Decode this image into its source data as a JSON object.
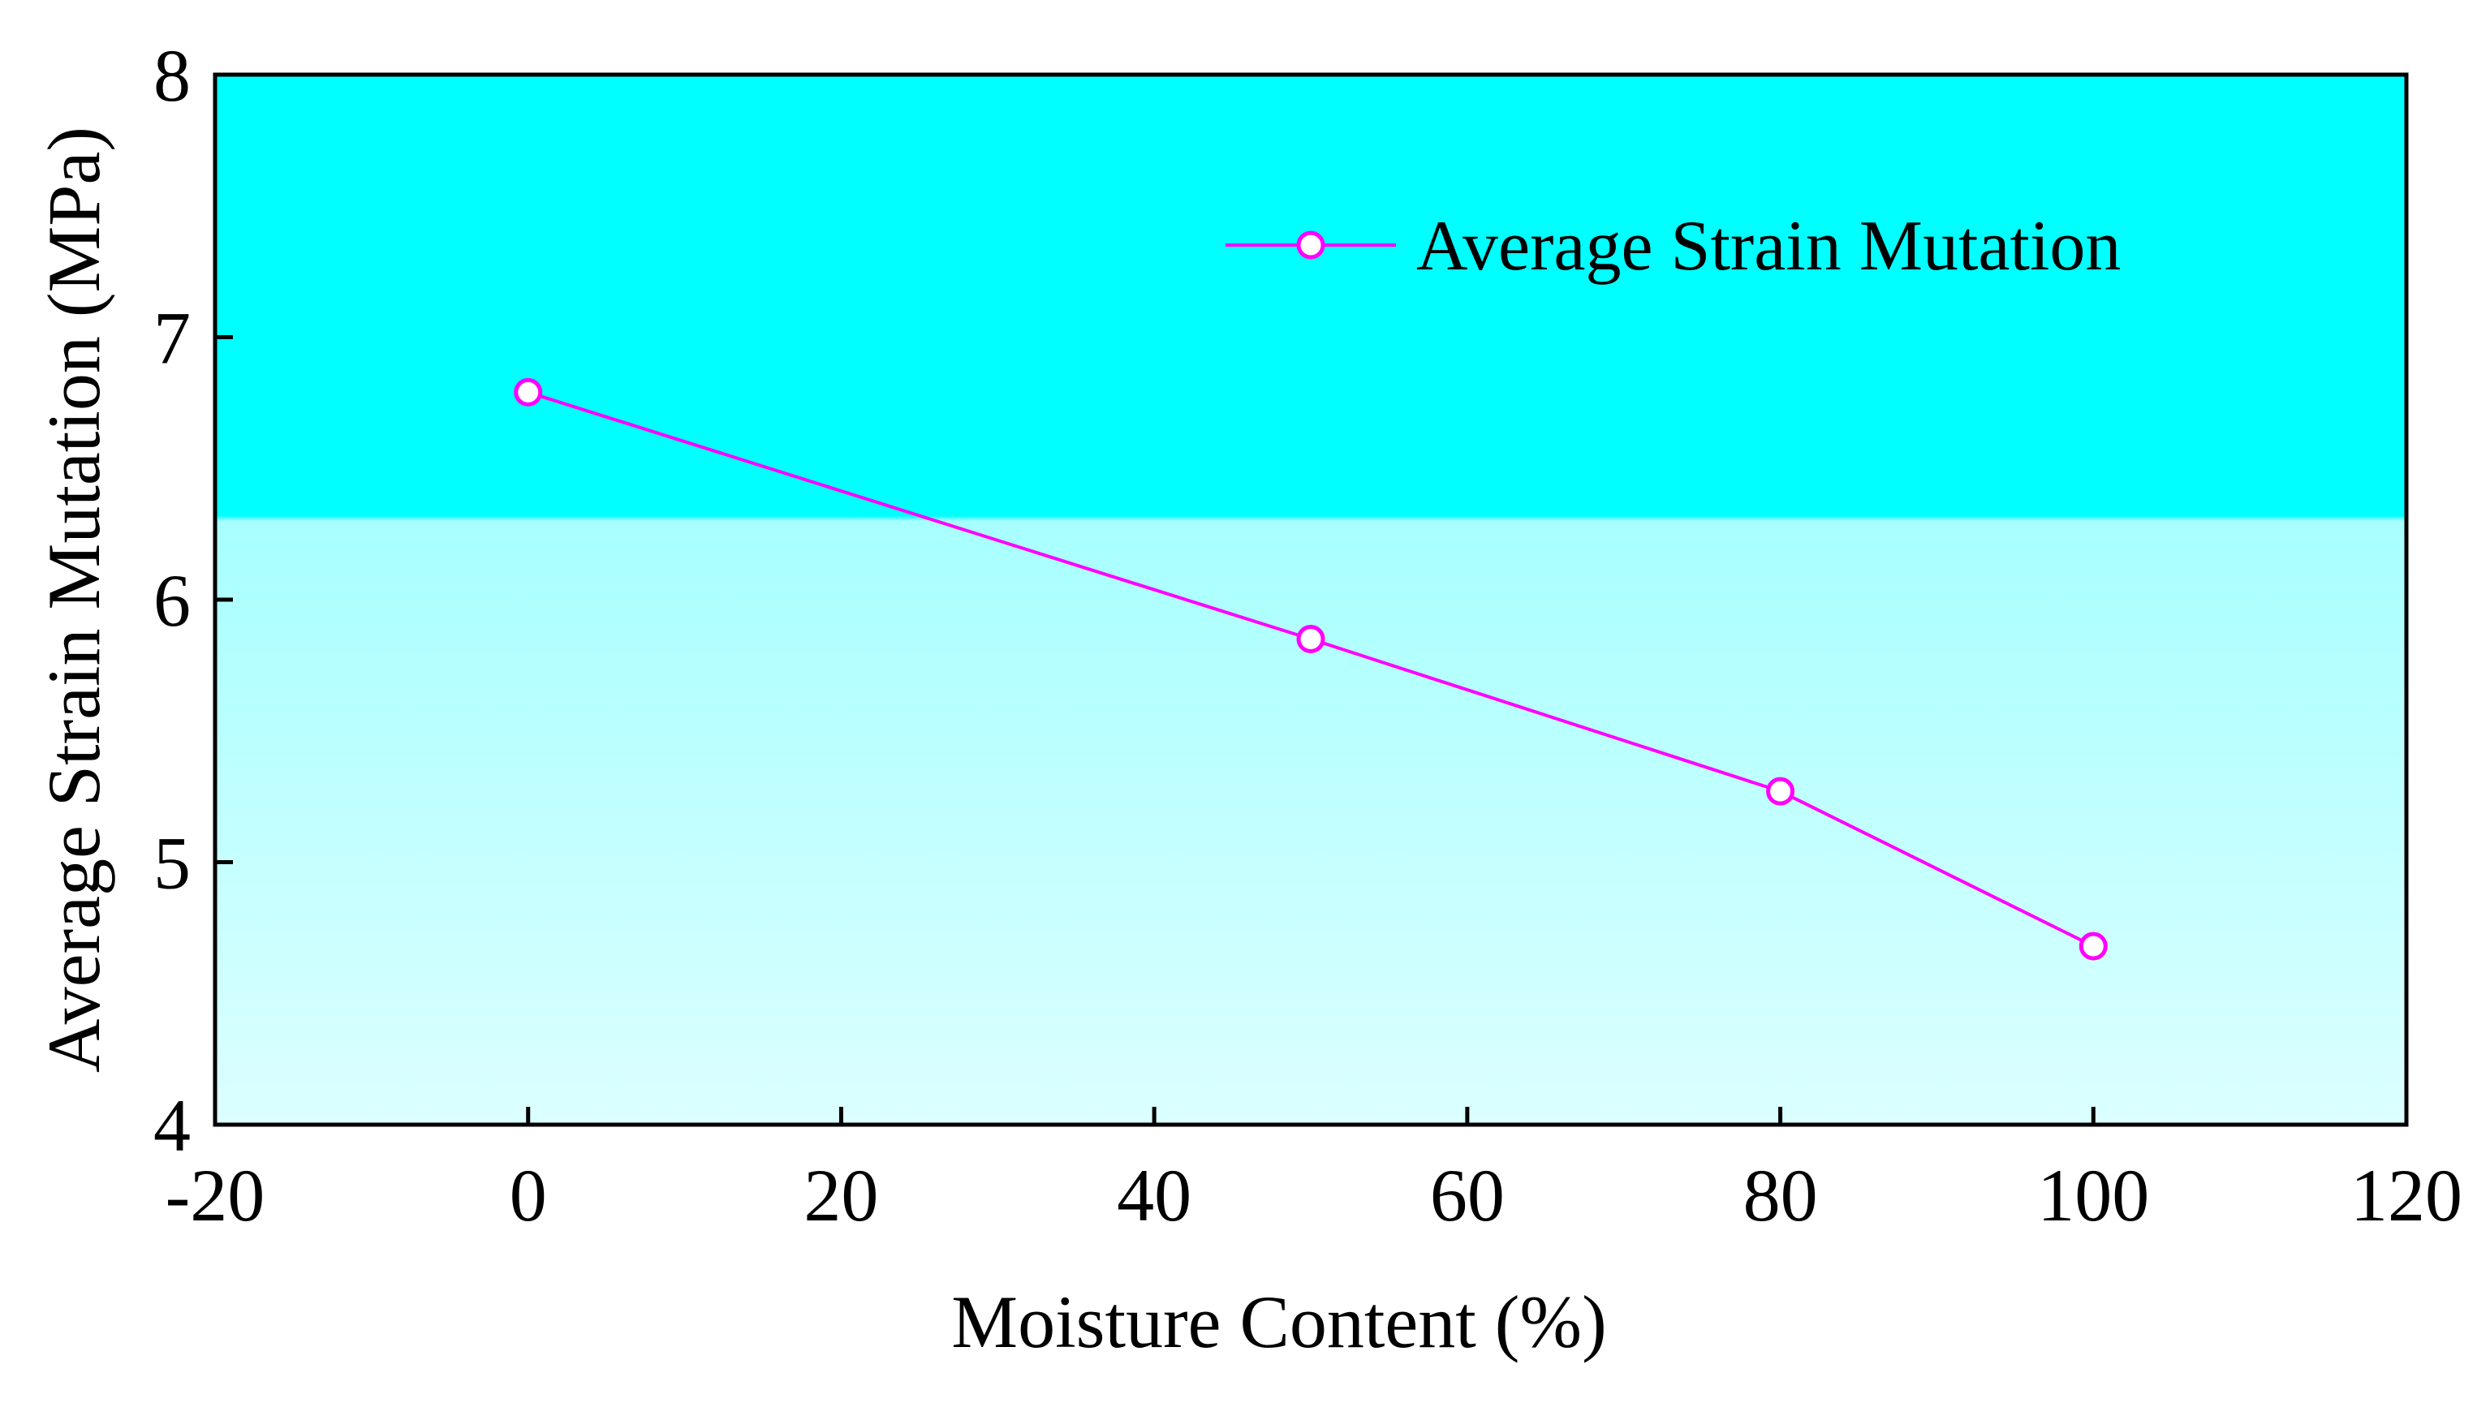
{
  "colors": {
    "series": "#ff00ff",
    "plot_bg_top": "#00ffff",
    "plot_bg_bottom": "#dcffff",
    "axis": "#000000",
    "marker_fill": "#ffffff"
  },
  "chart_data": {
    "type": "line",
    "title": "",
    "xlabel": "Moisture Content (%)",
    "ylabel": "Average Strain Mutation (MPa)",
    "xlim": [
      -20,
      120
    ],
    "ylim": [
      4,
      8
    ],
    "xticks": [
      -20,
      0,
      20,
      40,
      60,
      80,
      100,
      120
    ],
    "yticks": [
      4,
      5,
      6,
      7,
      8
    ],
    "xtick_labels": [
      "-20",
      "0",
      "20",
      "40",
      "60",
      "80",
      "100",
      "120"
    ],
    "ytick_labels": [
      "4",
      "5",
      "6",
      "7",
      "8"
    ],
    "grid": false,
    "legend_position": "top-right",
    "series": [
      {
        "name": "Average Strain Mutation",
        "marker": "open-circle",
        "x": [
          0,
          50,
          80,
          100
        ],
        "y": [
          6.79,
          5.85,
          5.27,
          4.68
        ]
      }
    ]
  }
}
